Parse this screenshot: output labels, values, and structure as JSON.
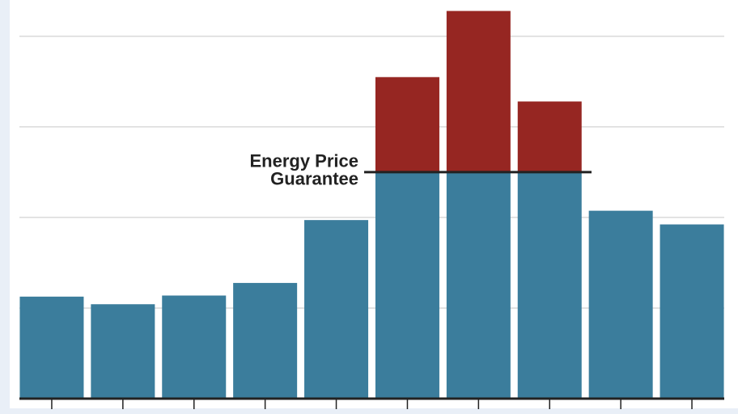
{
  "chart_data": {
    "type": "bar",
    "stacked": true,
    "categories": [
      null,
      null,
      null,
      null,
      null,
      null,
      null,
      null,
      null,
      null
    ],
    "series": [
      {
        "color": "#3b7d9c",
        "values": [
          1126,
          1042,
          1138,
          1277,
          1971,
          2500,
          2500,
          2500,
          2074,
          1923
        ]
      },
      {
        "color": "#962622",
        "values": [
          0,
          0,
          0,
          0,
          0,
          1049,
          1779,
          780,
          0,
          0
        ]
      }
    ],
    "ylim": [
      0,
      4400
    ],
    "yticks": [
      1000,
      2000,
      3000,
      4000
    ],
    "grid": true,
    "annotation": {
      "lines": [
        "Energy Price",
        "Guarantee"
      ],
      "value": 2500
    }
  }
}
